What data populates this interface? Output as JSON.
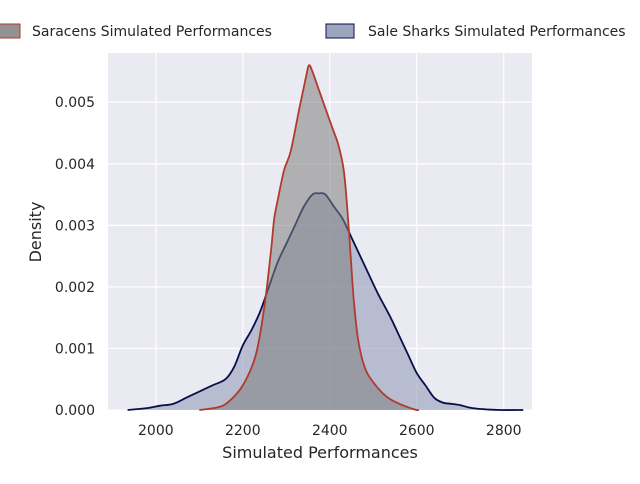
{
  "chart_data": {
    "type": "area",
    "subtype": "kde-density",
    "title": "",
    "xlabel": "Simulated Performances",
    "ylabel": "Density",
    "xlim": [
      1890,
      2865
    ],
    "ylim": [
      0,
      0.0058
    ],
    "x_ticks": [
      2000,
      2200,
      2400,
      2600,
      2800
    ],
    "x_tick_labels": [
      "2000",
      "2200",
      "2400",
      "2600",
      "2800"
    ],
    "y_ticks": [
      0,
      0.001,
      0.002,
      0.003,
      0.004,
      0.005
    ],
    "y_tick_labels": [
      "0.000",
      "0.001",
      "0.002",
      "0.003",
      "0.004",
      "0.005"
    ],
    "grid": true,
    "legend_position": "top",
    "series": [
      {
        "name": "Saracens Simulated Performances",
        "fill_color": "#808080",
        "line_color": "#b03a2e",
        "fill_opacity": 0.55,
        "x": [
          2100,
          2140,
          2165,
          2200,
          2230,
          2250,
          2265,
          2272,
          2280,
          2295,
          2310,
          2330,
          2345,
          2352,
          2360,
          2375,
          2390,
          2405,
          2420,
          2432,
          2440,
          2448,
          2455,
          2465,
          2480,
          2500,
          2530,
          2560,
          2590,
          2600,
          2605
        ],
        "y": [
          0.0,
          4e-05,
          0.00012,
          0.0004,
          0.0009,
          0.0017,
          0.0026,
          0.0031,
          0.0034,
          0.0039,
          0.0042,
          0.0049,
          0.0054,
          0.0056,
          0.0055,
          0.0052,
          0.0049,
          0.0046,
          0.0043,
          0.0039,
          0.0033,
          0.0025,
          0.0018,
          0.00115,
          0.0007,
          0.00045,
          0.00022,
          0.0001,
          2e-05,
          0.0,
          0.0
        ]
      },
      {
        "name": "Sale Sharks Simulated Performances",
        "fill_color": "#8c96b4",
        "line_color": "#0a0f4a",
        "fill_opacity": 0.55,
        "x": [
          1935,
          1980,
          2010,
          2040,
          2070,
          2100,
          2130,
          2160,
          2180,
          2200,
          2220,
          2240,
          2260,
          2280,
          2300,
          2320,
          2340,
          2360,
          2375,
          2390,
          2410,
          2430,
          2450,
          2470,
          2490,
          2510,
          2540,
          2560,
          2580,
          2600,
          2620,
          2640,
          2660,
          2680,
          2700,
          2720,
          2740,
          2760,
          2790,
          2845
        ],
        "y": [
          0.0,
          3e-05,
          7e-05,
          0.0001,
          0.0002,
          0.0003,
          0.0004,
          0.0005,
          0.0007,
          0.00105,
          0.0013,
          0.0016,
          0.002,
          0.0024,
          0.0027,
          0.003,
          0.0033,
          0.0035,
          0.00352,
          0.0035,
          0.0033,
          0.0031,
          0.0028,
          0.0025,
          0.0022,
          0.0019,
          0.0015,
          0.0012,
          0.0009,
          0.0006,
          0.0004,
          0.0002,
          0.00012,
          0.0001,
          8e-05,
          4e-05,
          2e-05,
          1e-05,
          0.0,
          0.0
        ]
      }
    ]
  },
  "colors": {
    "plot_background": "#eaeaf2",
    "grid": "#ffffff",
    "text": "#262626"
  }
}
